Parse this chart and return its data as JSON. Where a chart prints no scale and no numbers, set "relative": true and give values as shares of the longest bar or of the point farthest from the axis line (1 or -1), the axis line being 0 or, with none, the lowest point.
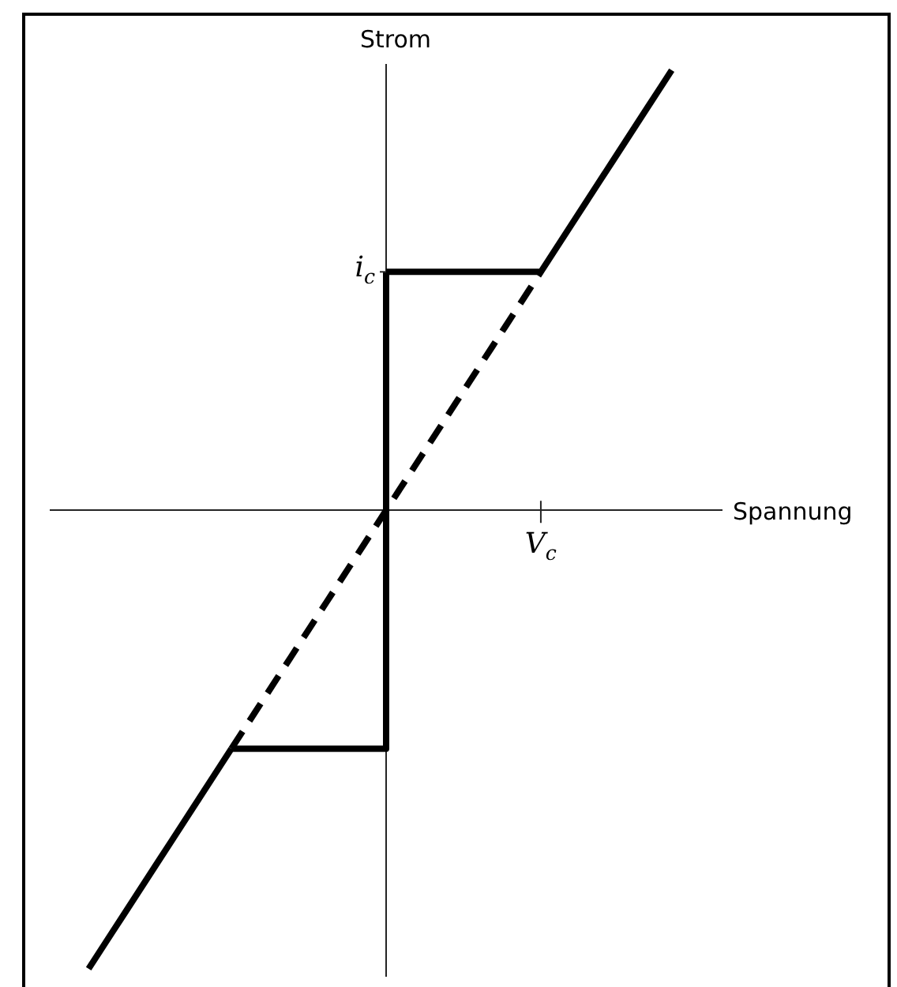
{
  "chart_data": {
    "type": "line",
    "relative": true,
    "xlabel": "Spannung",
    "ylabel": "Strom",
    "categories": [
      null,
      null,
      null,
      null,
      null,
      null,
      null,
      null,
      null,
      null,
      null,
      null,
      null,
      null,
      null,
      null,
      null,
      null,
      null,
      null,
      null,
      null,
      null,
      null,
      null,
      null,
      null,
      null,
      null,
      null,
      null,
      null,
      null,
      null,
      null,
      null,
      null,
      null,
      null,
      null,
      null,
      null,
      null,
      null,
      null,
      null,
      null,
      null,
      null,
      null,
      null
    ],
    "annotations": [
      "i$_{c}$",
      "V$_{c}$"
    ],
    "legend": false,
    "marker": "none",
    "series": [
      {
        "type": "line",
        "color": "#000000",
        "line_style": "solid",
        "values": [
          -1,
          -0.96,
          -0.92,
          -0.88,
          -0.84,
          -0.8,
          -0.76,
          -0.72,
          -0.68,
          -0.64,
          -0.6,
          -0.56,
          -0.52,
          null,
          null,
          null,
          null,
          null,
          null,
          null,
          null,
          null,
          null,
          null,
          null,
          null,
          null,
          null,
          null,
          null,
          null,
          null,
          null,
          null,
          null,
          null,
          null,
          null,
          null,
          null,
          null,
          null,
          null,
          null,
          null,
          null,
          null,
          null,
          null,
          null,
          null
        ]
      },
      {
        "type": "step",
        "color": "#000000",
        "line_style": "solid",
        "values": [
          null,
          null,
          null,
          null,
          null,
          null,
          null,
          null,
          null,
          null,
          null,
          null,
          -0.52,
          -0.52,
          -0.52,
          -0.52,
          -0.52,
          -0.52,
          -0.52,
          -0.52,
          -0.52,
          -0.52,
          -0.52,
          -0.52,
          -0.52,
          0.52,
          null,
          null,
          null,
          null,
          null,
          null,
          null,
          null,
          null,
          null,
          null,
          null,
          null,
          null,
          null,
          null,
          null,
          null,
          null,
          null,
          null,
          null,
          null,
          null,
          null
        ]
      },
      {
        "type": "line",
        "color": "#000000",
        "line_style": "solid",
        "values": [
          null,
          null,
          null,
          null,
          null,
          null,
          null,
          null,
          null,
          null,
          null,
          null,
          null,
          null,
          null,
          null,
          null,
          null,
          null,
          null,
          null,
          null,
          null,
          null,
          null,
          0.52,
          0.52,
          0.52,
          0.52,
          0.52,
          0.52,
          0.52,
          0.52,
          0.52,
          0.52,
          0.52,
          0.52,
          0.52,
          0.52,
          0.56,
          0.6,
          0.64,
          0.68,
          0.72,
          0.76,
          0.8,
          0.84,
          0.88,
          0.92,
          0.96,
          null
        ]
      },
      {
        "type": "line",
        "color": "#000000",
        "line_style": "dashed",
        "values": [
          null,
          null,
          null,
          null,
          null,
          null,
          null,
          null,
          null,
          null,
          null,
          null,
          -0.52,
          -0.48,
          -0.44,
          -0.4,
          -0.36,
          -0.32,
          -0.28,
          -0.24,
          -0.2,
          -0.16,
          -0.12,
          -0.08,
          -0.04,
          0,
          0.04,
          0.08,
          0.12,
          0.16,
          0.2,
          0.24,
          0.28,
          0.32,
          0.36,
          0.4,
          0.44,
          0.48,
          0.52,
          null,
          null,
          null,
          null,
          null,
          null,
          null,
          null,
          null,
          null,
          null,
          null
        ]
      }
    ]
  }
}
